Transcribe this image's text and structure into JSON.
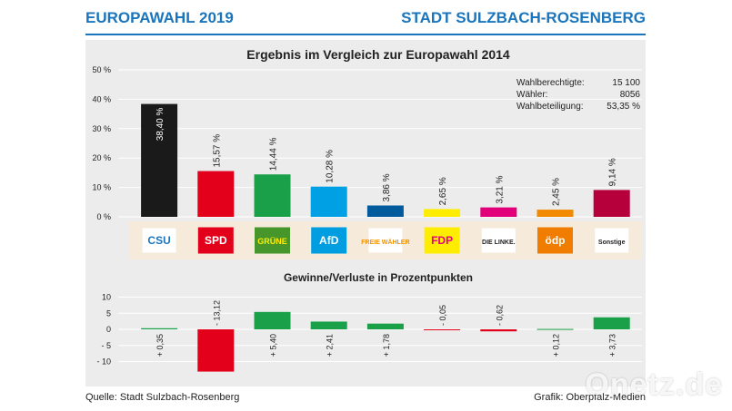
{
  "header": {
    "left_title": "EUROPAWAHL 2019",
    "right_title": "STADT SULZBACH-ROSENBERG"
  },
  "footer": {
    "source": "Quelle: Stadt Sulzbach-Rosenberg",
    "credit": "Grafik: Oberpfalz-Medien"
  },
  "watermark": "Onetz.de",
  "stats": {
    "labels": [
      "Wahlberechtigte:",
      "Wähler:",
      "Wahlbeteiligung:"
    ],
    "values": [
      "15 100",
      "8056",
      "53,35 %"
    ]
  },
  "logos": [
    {
      "text": "CSU",
      "bg": "#ffffff",
      "fg": "#1b75bc"
    },
    {
      "text": "SPD",
      "bg": "#e2001a",
      "fg": "#ffffff"
    },
    {
      "text": "GRÜNE",
      "bg": "#46962b",
      "fg": "#ffee00"
    },
    {
      "text": "AfD",
      "bg": "#009ee0",
      "fg": "#ffffff"
    },
    {
      "text": "FREIE WÄHLER",
      "bg": "#ffffff",
      "fg": "#f39200"
    },
    {
      "text": "FDP",
      "bg": "#ffed00",
      "fg": "#e5007d"
    },
    {
      "text": "DIE LINKE.",
      "bg": "#ffffff",
      "fg": "#222222"
    },
    {
      "text": "ödp",
      "bg": "#f07d00",
      "fg": "#ffffff"
    },
    {
      "text": "Sonstige",
      "bg": "#ffffff",
      "fg": "#222222"
    }
  ],
  "chart_data": [
    {
      "type": "bar",
      "title": "Ergebnis im Vergleich zur Europawahl 2014",
      "ylabel": "",
      "ylim": [
        0,
        50
      ],
      "yticks": [
        0,
        10,
        20,
        30,
        40,
        50
      ],
      "ytick_labels": [
        "0 %",
        "10 %",
        "20 %",
        "30 %",
        "40 %",
        "50 %"
      ],
      "categories": [
        "CSU",
        "SPD",
        "GRÜNE",
        "AfD",
        "FREIE WÄHLER",
        "FDP",
        "DIE LINKE.",
        "ödp",
        "Sonstige"
      ],
      "values": [
        38.4,
        15.57,
        14.44,
        10.28,
        3.86,
        2.65,
        3.21,
        2.45,
        9.14
      ],
      "value_labels": [
        "38,40 %",
        "15,57 %",
        "14,44 %",
        "10,28 %",
        "3,86 %",
        "2,65 %",
        "3,21 %",
        "2,45 %",
        "9,14 %"
      ],
      "colors": [
        "#1a1a1a",
        "#e3001b",
        "#1ba04a",
        "#00a1e4",
        "#005a9c",
        "#ffed00",
        "#e2007a",
        "#f18a00",
        "#b5003c"
      ]
    },
    {
      "type": "bar",
      "title": "Gewinne/Verluste in Prozentpunkten",
      "ylim": [
        -15,
        10
      ],
      "yticks": [
        10,
        5,
        0,
        -5,
        -10
      ],
      "ytick_labels": [
        "10",
        "5",
        "0",
        "- 5",
        "- 10"
      ],
      "categories": [
        "CSU",
        "SPD",
        "GRÜNE",
        "AfD",
        "FREIE WÄHLER",
        "FDP",
        "DIE LINKE.",
        "ödp",
        "Sonstige"
      ],
      "values": [
        0.35,
        -13.12,
        5.4,
        2.41,
        1.78,
        -0.05,
        -0.62,
        0.12,
        3.73
      ],
      "value_labels": [
        "+ 0,35",
        "- 13,12",
        "+ 5,40",
        "+ 2,41",
        "+ 1,78",
        "- 0,05",
        "- 0,62",
        "+ 0,12",
        "+ 3,73"
      ],
      "colors": [
        "#1ba04a",
        "#e3001b",
        "#1ba04a",
        "#1ba04a",
        "#1ba04a",
        "#e3001b",
        "#e3001b",
        "#1ba04a",
        "#1ba04a"
      ]
    }
  ]
}
